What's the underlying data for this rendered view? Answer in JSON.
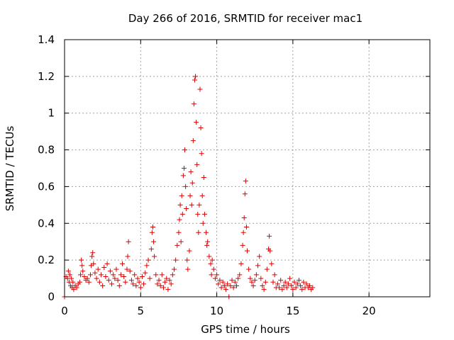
{
  "chart_data": {
    "type": "scatter",
    "title": "Day 266 of 2016, SRMTID for receiver mac1",
    "xlabel": "GPS time / hours",
    "ylabel": "SRMTID / TECUs",
    "xlim": [
      0,
      24
    ],
    "ylim": [
      0,
      1.4
    ],
    "xticks": [
      0,
      5,
      10,
      15,
      20
    ],
    "xtick_labels": [
      "0",
      "5",
      "10",
      "15",
      "20"
    ],
    "yticks": [
      0,
      0.2,
      0.4,
      0.6,
      0.8,
      1,
      1.2,
      1.4
    ],
    "ytick_labels": [
      "0",
      "0.2",
      "0.4",
      "0.6",
      "0.8",
      "1",
      "1.2",
      "1.4"
    ],
    "grid": true,
    "marker": "+",
    "series": [
      {
        "name": "SRMTID",
        "color": "#e00000",
        "points": [
          [
            0.0,
            0.0
          ],
          [
            0.1,
            0.11
          ],
          [
            0.2,
            0.1
          ],
          [
            0.25,
            0.14
          ],
          [
            0.3,
            0.08
          ],
          [
            0.35,
            0.12
          ],
          [
            0.4,
            0.06
          ],
          [
            0.45,
            0.1
          ],
          [
            0.5,
            0.05
          ],
          [
            0.55,
            0.08
          ],
          [
            0.6,
            0.04
          ],
          [
            0.7,
            0.06
          ],
          [
            0.8,
            0.05
          ],
          [
            0.9,
            0.07
          ],
          [
            1.0,
            0.08
          ],
          [
            1.05,
            0.12
          ],
          [
            1.1,
            0.2
          ],
          [
            1.15,
            0.17
          ],
          [
            1.2,
            0.14
          ],
          [
            1.3,
            0.11
          ],
          [
            1.4,
            0.09
          ],
          [
            1.5,
            0.1
          ],
          [
            1.6,
            0.08
          ],
          [
            1.7,
            0.12
          ],
          [
            1.75,
            0.17
          ],
          [
            1.8,
            0.22
          ],
          [
            1.85,
            0.24
          ],
          [
            1.9,
            0.18
          ],
          [
            2.0,
            0.13
          ],
          [
            2.1,
            0.1
          ],
          [
            2.2,
            0.15
          ],
          [
            2.3,
            0.08
          ],
          [
            2.4,
            0.12
          ],
          [
            2.5,
            0.06
          ],
          [
            2.6,
            0.16
          ],
          [
            2.7,
            0.11
          ],
          [
            2.8,
            0.18
          ],
          [
            2.9,
            0.09
          ],
          [
            3.0,
            0.14
          ],
          [
            3.1,
            0.07
          ],
          [
            3.2,
            0.12
          ],
          [
            3.3,
            0.1
          ],
          [
            3.4,
            0.15
          ],
          [
            3.5,
            0.09
          ],
          [
            3.6,
            0.06
          ],
          [
            3.7,
            0.12
          ],
          [
            3.8,
            0.18
          ],
          [
            3.9,
            0.11
          ],
          [
            4.0,
            0.08
          ],
          [
            4.1,
            0.15
          ],
          [
            4.15,
            0.22
          ],
          [
            4.2,
            0.3
          ],
          [
            4.3,
            0.14
          ],
          [
            4.4,
            0.09
          ],
          [
            4.5,
            0.07
          ],
          [
            4.6,
            0.12
          ],
          [
            4.7,
            0.06
          ],
          [
            4.8,
            0.1
          ],
          [
            4.9,
            0.08
          ],
          [
            5.0,
            0.05
          ],
          [
            5.1,
            0.11
          ],
          [
            5.2,
            0.07
          ],
          [
            5.3,
            0.13
          ],
          [
            5.4,
            0.17
          ],
          [
            5.5,
            0.2
          ],
          [
            5.6,
            0.1
          ],
          [
            5.7,
            0.26
          ],
          [
            5.75,
            0.35
          ],
          [
            5.8,
            0.38
          ],
          [
            5.85,
            0.3
          ],
          [
            5.9,
            0.22
          ],
          [
            6.0,
            0.12
          ],
          [
            6.1,
            0.07
          ],
          [
            6.2,
            0.09
          ],
          [
            6.3,
            0.06
          ],
          [
            6.4,
            0.12
          ],
          [
            6.5,
            0.05
          ],
          [
            6.6,
            0.08
          ],
          [
            6.7,
            0.1
          ],
          [
            6.8,
            0.04
          ],
          [
            6.9,
            0.09
          ],
          [
            7.0,
            0.07
          ],
          [
            7.1,
            0.12
          ],
          [
            7.2,
            0.15
          ],
          [
            7.3,
            0.2
          ],
          [
            7.4,
            0.28
          ],
          [
            7.5,
            0.35
          ],
          [
            7.55,
            0.42
          ],
          [
            7.6,
            0.5
          ],
          [
            7.65,
            0.3
          ],
          [
            7.7,
            0.55
          ],
          [
            7.75,
            0.45
          ],
          [
            7.8,
            0.66
          ],
          [
            7.85,
            0.7
          ],
          [
            7.9,
            0.8
          ],
          [
            7.95,
            0.6
          ],
          [
            8.0,
            0.48
          ],
          [
            8.05,
            0.2
          ],
          [
            8.1,
            0.15
          ],
          [
            8.2,
            0.25
          ],
          [
            8.25,
            0.55
          ],
          [
            8.3,
            0.68
          ],
          [
            8.35,
            0.5
          ],
          [
            8.4,
            0.62
          ],
          [
            8.45,
            0.85
          ],
          [
            8.5,
            1.05
          ],
          [
            8.55,
            1.18
          ],
          [
            8.6,
            1.2
          ],
          [
            8.65,
            0.95
          ],
          [
            8.7,
            0.72
          ],
          [
            8.75,
            0.45
          ],
          [
            8.8,
            0.35
          ],
          [
            8.85,
            0.5
          ],
          [
            8.9,
            1.13
          ],
          [
            8.95,
            0.92
          ],
          [
            9.0,
            0.78
          ],
          [
            9.05,
            0.55
          ],
          [
            9.1,
            0.4
          ],
          [
            9.15,
            0.65
          ],
          [
            9.2,
            0.45
          ],
          [
            9.3,
            0.35
          ],
          [
            9.35,
            0.28
          ],
          [
            9.4,
            0.3
          ],
          [
            9.5,
            0.22
          ],
          [
            9.6,
            0.18
          ],
          [
            9.65,
            0.12
          ],
          [
            9.7,
            0.2
          ],
          [
            9.8,
            0.15
          ],
          [
            9.9,
            0.1
          ],
          [
            10.0,
            0.12
          ],
          [
            10.1,
            0.07
          ],
          [
            10.2,
            0.09
          ],
          [
            10.3,
            0.05
          ],
          [
            10.4,
            0.08
          ],
          [
            10.5,
            0.06
          ],
          [
            10.6,
            0.04
          ],
          [
            10.7,
            0.07
          ],
          [
            10.8,
            0.0
          ],
          [
            10.9,
            0.06
          ],
          [
            11.0,
            0.09
          ],
          [
            11.1,
            0.05
          ],
          [
            11.2,
            0.08
          ],
          [
            11.3,
            0.06
          ],
          [
            11.4,
            0.1
          ],
          [
            11.5,
            0.12
          ],
          [
            11.6,
            0.18
          ],
          [
            11.7,
            0.28
          ],
          [
            11.75,
            0.35
          ],
          [
            11.8,
            0.43
          ],
          [
            11.85,
            0.56
          ],
          [
            11.9,
            0.63
          ],
          [
            11.95,
            0.38
          ],
          [
            12.0,
            0.25
          ],
          [
            12.1,
            0.15
          ],
          [
            12.2,
            0.1
          ],
          [
            12.3,
            0.08
          ],
          [
            12.4,
            0.06
          ],
          [
            12.5,
            0.09
          ],
          [
            12.6,
            0.12
          ],
          [
            12.7,
            0.17
          ],
          [
            12.8,
            0.22
          ],
          [
            12.9,
            0.1
          ],
          [
            13.0,
            0.06
          ],
          [
            13.1,
            0.04
          ],
          [
            13.2,
            0.08
          ],
          [
            13.3,
            0.15
          ],
          [
            13.4,
            0.26
          ],
          [
            13.45,
            0.33
          ],
          [
            13.5,
            0.25
          ],
          [
            13.6,
            0.18
          ],
          [
            13.7,
            0.08
          ],
          [
            13.8,
            0.12
          ],
          [
            13.9,
            0.05
          ],
          [
            14.0,
            0.07
          ],
          [
            14.1,
            0.05
          ],
          [
            14.2,
            0.09
          ],
          [
            14.3,
            0.04
          ],
          [
            14.4,
            0.06
          ],
          [
            14.5,
            0.08
          ],
          [
            14.6,
            0.05
          ],
          [
            14.7,
            0.07
          ],
          [
            14.8,
            0.1
          ],
          [
            14.9,
            0.06
          ],
          [
            15.0,
            0.04
          ],
          [
            15.1,
            0.08
          ],
          [
            15.2,
            0.05
          ],
          [
            15.3,
            0.07
          ],
          [
            15.4,
            0.09
          ],
          [
            15.5,
            0.06
          ],
          [
            15.6,
            0.04
          ],
          [
            15.7,
            0.08
          ],
          [
            15.8,
            0.05
          ],
          [
            15.9,
            0.07
          ],
          [
            16.0,
            0.05
          ],
          [
            16.1,
            0.06
          ],
          [
            16.2,
            0.04
          ],
          [
            16.3,
            0.05
          ]
        ]
      }
    ]
  }
}
